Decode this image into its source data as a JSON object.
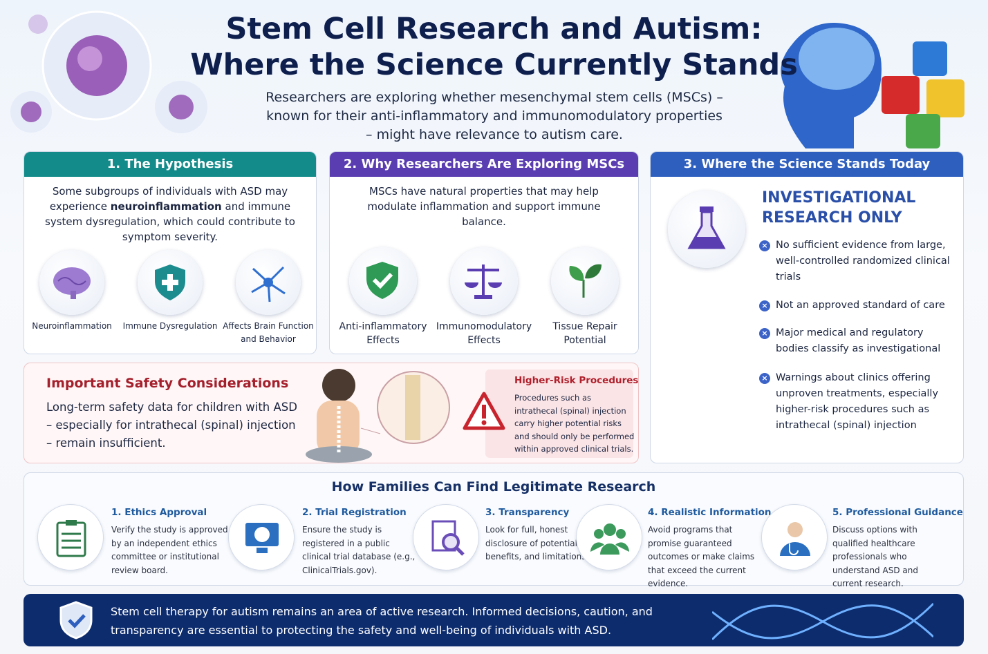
{
  "header": {
    "title_line1": "Stem Cell Research and Autism:",
    "title_line2": "Where the Science Currently Stands",
    "subtitle": "Researchers are exploring whether mesenchymal stem cells (MSCs) – known for their anti-inflammatory and immunomodulatory properties – might have relevance to autism care."
  },
  "hypothesis": {
    "heading": "1. The Hypothesis",
    "text_parts": [
      "Some subgroups of individuals with ASD may experience ",
      "neuroinflammation",
      " and immune system dysregulation, which could contribute to symptom severity."
    ],
    "items": [
      "Neuroinflammation",
      "Immune Dysregulation",
      "Affects Brain Function and Behavior"
    ]
  },
  "why": {
    "heading": "2. Why Researchers Are Exploring MSCs",
    "text": "MSCs have natural properties that may help modulate inflammation and support immune balance.",
    "items": [
      "Anti-inflammatory Effects",
      "Immunomodulatory Effects",
      "Tissue Repair Potential"
    ]
  },
  "science": {
    "heading": "3. Where the Science Stands Today",
    "status": "INVESTIGATIONAL RESEARCH ONLY",
    "points": [
      "No sufficient evidence from large, well-controlled randomized clinical trials",
      "Not an approved standard of care",
      "Major medical and regulatory bodies classify as investigational",
      "Warnings about clinics offering unproven treatments, especially higher-risk procedures such as intrathecal (spinal) injection"
    ]
  },
  "safety": {
    "title": "Important Safety Considerations",
    "text": "Long-term safety data for children with ASD – especially for intrathecal (spinal) injection – remain insufficient.",
    "risk_title": "Higher-Risk Procedures",
    "risk_text": "Procedures such as intrathecal (spinal) injection carry higher potential risks and should only be performed within approved clinical trials."
  },
  "families": {
    "title": "How Families Can Find Legitimate Research",
    "steps": [
      {
        "title": "1. Ethics Approval",
        "text": "Verify the study is approved by an independent ethics committee or institutional review board."
      },
      {
        "title": "2. Trial Registration",
        "text": "Ensure the study is registered in a public clinical trial database (e.g., ClinicalTrials.gov)."
      },
      {
        "title": "3. Transparency",
        "text": "Look for full, honest disclosure of potential risks, benefits, and limitations."
      },
      {
        "title": "4. Realistic Information",
        "text": "Avoid programs that promise guaranteed outcomes or make claims that exceed the current evidence."
      },
      {
        "title": "5. Professional Guidance",
        "text": "Discuss options with qualified healthcare professionals who understand ASD and current research."
      }
    ]
  },
  "footer": {
    "text": "Stem cell therapy for autism remains an area of active research. Informed decisions, caution, and transparency are essential to protecting the safety and well-being of individuals with ASD."
  }
}
